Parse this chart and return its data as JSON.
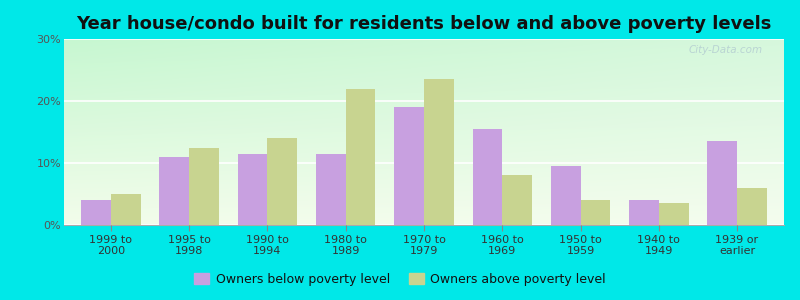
{
  "title": "Year house/condo built for residents below and above poverty levels",
  "categories": [
    "1999 to\n2000",
    "1995 to\n1998",
    "1990 to\n1994",
    "1980 to\n1989",
    "1970 to\n1979",
    "1960 to\n1969",
    "1950 to\n1959",
    "1940 to\n1949",
    "1939 or\nearlier"
  ],
  "below_poverty": [
    4.0,
    11.0,
    11.5,
    11.5,
    19.0,
    15.5,
    9.5,
    4.0,
    13.5
  ],
  "above_poverty": [
    5.0,
    12.5,
    14.0,
    22.0,
    23.5,
    8.0,
    4.0,
    3.5,
    6.0
  ],
  "below_color": "#c8a0e0",
  "above_color": "#c8d490",
  "ylim": [
    0,
    30
  ],
  "yticks": [
    0,
    10,
    20,
    30
  ],
  "ytick_labels": [
    "0%",
    "10%",
    "20%",
    "30%"
  ],
  "bar_width": 0.38,
  "outer_bg": "#00e8e8",
  "legend_below_label": "Owners below poverty level",
  "legend_above_label": "Owners above poverty level",
  "title_fontsize": 13,
  "tick_fontsize": 8,
  "legend_fontsize": 9,
  "watermark": "City-Data.com"
}
